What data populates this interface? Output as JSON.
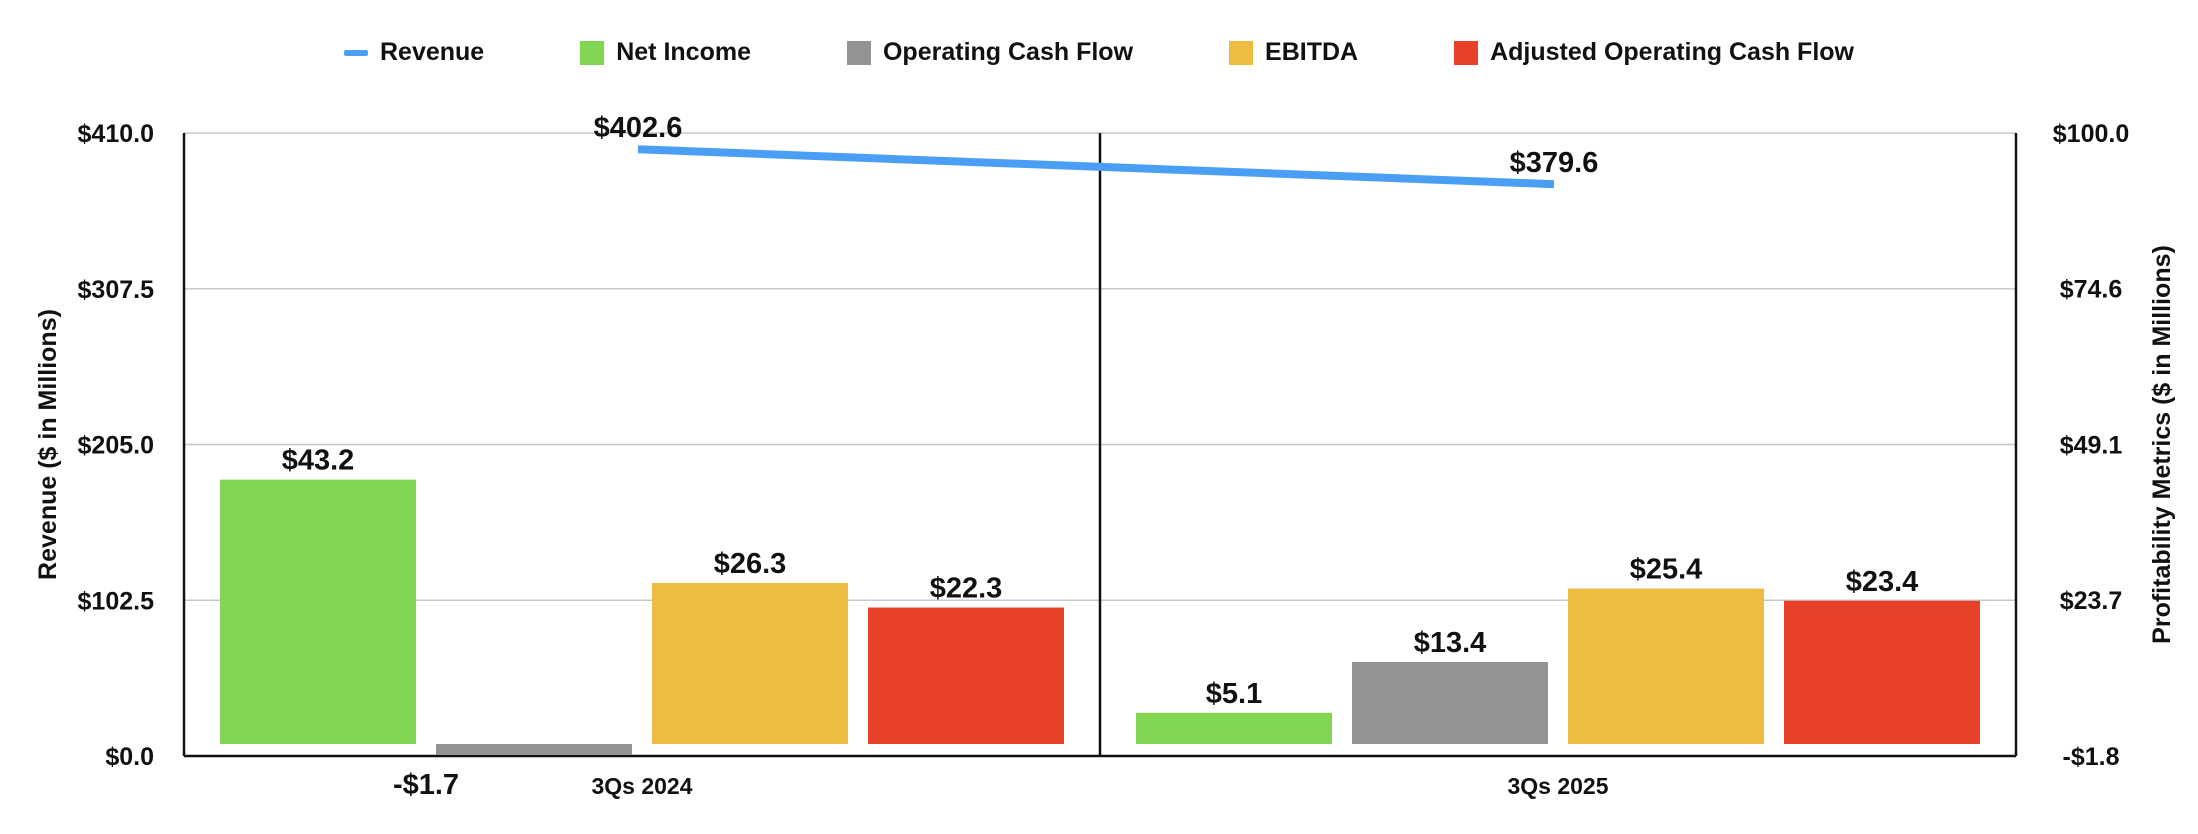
{
  "chart_data": {
    "type": "bar",
    "categories": [
      "3Qs 2024",
      "3Qs 2025"
    ],
    "left_axis": {
      "label": "Revenue ($ in Millions)",
      "range": [
        0,
        410
      ],
      "ticks": [
        "$0.0",
        "$102.5",
        "$205.0",
        "$307.5",
        "$410.0"
      ],
      "tick_values": [
        0,
        102.5,
        205,
        307.5,
        410
      ]
    },
    "right_axis": {
      "label": "Profitability Metrics ($ in Millions)",
      "range": [
        -1.8,
        100
      ],
      "ticks": [
        "-$1.8",
        "$23.7",
        "$49.1",
        "$74.6",
        "$100.0"
      ],
      "tick_values": [
        -1.8,
        23.7,
        49.1,
        74.6,
        100
      ]
    },
    "line_series": {
      "name": "Revenue",
      "values": [
        402.6,
        379.6
      ],
      "labels": [
        "$402.6",
        "$379.6"
      ],
      "color": "#4a9ff5",
      "axis": "left"
    },
    "bar_series": [
      {
        "name": "Net Income",
        "values": [
          43.2,
          5.1
        ],
        "labels": [
          "$43.2",
          "$5.1"
        ],
        "color": "#82d651"
      },
      {
        "name": "Operating Cash Flow",
        "values": [
          -1.7,
          13.4
        ],
        "labels": [
          "-$1.7",
          "$13.4"
        ],
        "color": "#939393"
      },
      {
        "name": "EBITDA",
        "values": [
          26.3,
          25.4
        ],
        "labels": [
          "$26.3",
          "$25.4"
        ],
        "color": "#eebc40"
      },
      {
        "name": "Adjusted Operating Cash Flow",
        "values": [
          22.3,
          23.4
        ],
        "labels": [
          "$22.3",
          "$23.4"
        ],
        "color": "#e94127"
      }
    ],
    "grid": true,
    "legend_position": "top-center"
  }
}
